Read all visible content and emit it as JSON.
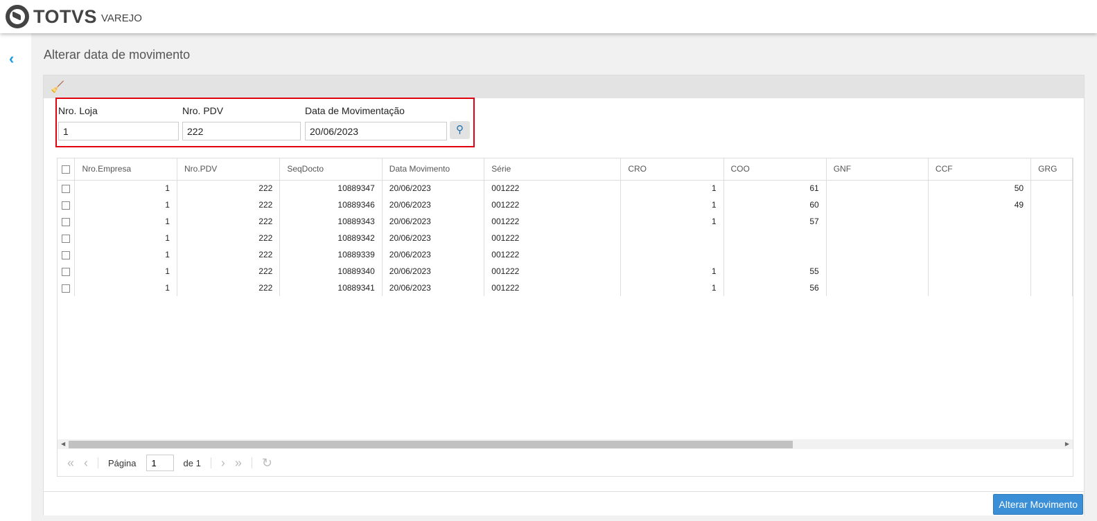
{
  "header": {
    "brand": "TOTVS",
    "product": "VAREJO"
  },
  "page": {
    "title": "Alterar data de movimento"
  },
  "filters": {
    "loja_label": "Nro. Loja",
    "loja_value": "1",
    "pdv_label": "Nro. PDV",
    "pdv_value": "222",
    "data_label": "Data de Movimentação",
    "data_value": "20/06/2023"
  },
  "grid": {
    "columns": [
      "Nro.Empresa",
      "Nro.PDV",
      "SeqDocto",
      "Data Movimento",
      "Série",
      "CRO",
      "COO",
      "GNF",
      "CCF",
      "GRG"
    ],
    "rows": [
      [
        "1",
        "222",
        "10889347",
        "20/06/2023",
        "001222",
        "1",
        "61",
        "",
        "50",
        ""
      ],
      [
        "1",
        "222",
        "10889346",
        "20/06/2023",
        "001222",
        "1",
        "60",
        "",
        "49",
        ""
      ],
      [
        "1",
        "222",
        "10889343",
        "20/06/2023",
        "001222",
        "1",
        "57",
        "",
        "",
        ""
      ],
      [
        "1",
        "222",
        "10889342",
        "20/06/2023",
        "001222",
        "",
        "",
        "",
        "",
        ""
      ],
      [
        "1",
        "222",
        "10889339",
        "20/06/2023",
        "001222",
        "",
        "",
        "",
        "",
        ""
      ],
      [
        "1",
        "222",
        "10889340",
        "20/06/2023",
        "001222",
        "1",
        "55",
        "",
        "",
        ""
      ],
      [
        "1",
        "222",
        "10889341",
        "20/06/2023",
        "001222",
        "1",
        "56",
        "",
        "",
        ""
      ]
    ]
  },
  "pager": {
    "page_label": "Página",
    "page_value": "1",
    "of_label": "de 1"
  },
  "actions": {
    "alterar": "Alterar Movimento"
  },
  "colors": {
    "accent": "#3a8fd6",
    "highlight": "#e3000f"
  }
}
